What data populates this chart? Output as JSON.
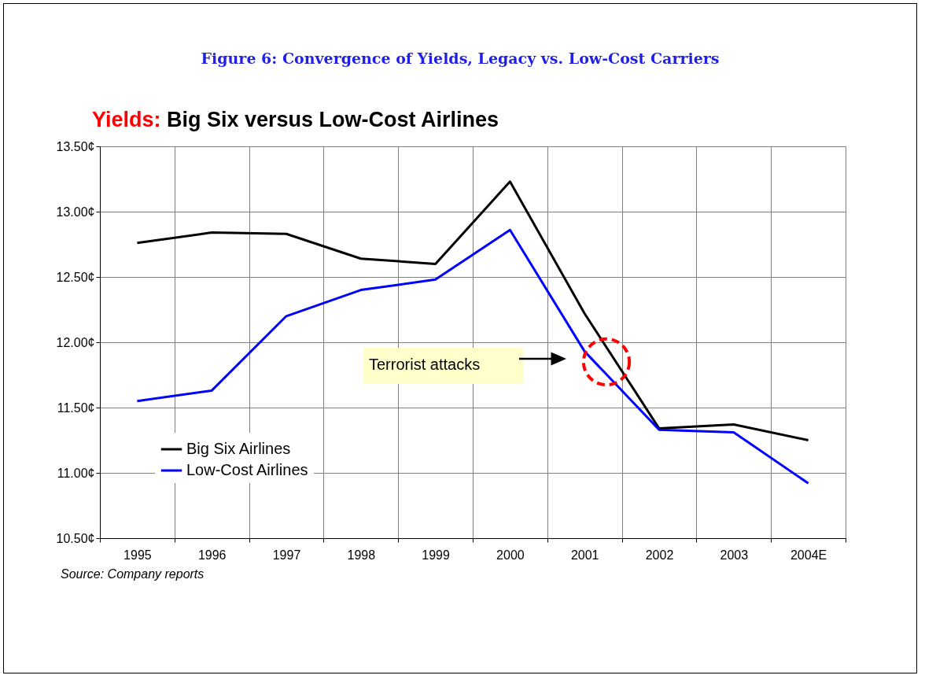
{
  "chart_data": {
    "type": "line",
    "title": "Figure 6: Convergence of Yields, Legacy vs. Low-Cost Carriers",
    "subtitle": "Yields: Big Six versus Low-Cost Airlines",
    "categories": [
      "1995",
      "1996",
      "1997",
      "1998",
      "1999",
      "2000",
      "2001",
      "2002",
      "2003",
      "2004E"
    ],
    "series": [
      {
        "name": "Big Six Airlines",
        "color": "#000000",
        "values": [
          12.76,
          12.84,
          12.83,
          12.64,
          12.6,
          13.23,
          12.22,
          11.34,
          11.37,
          11.25
        ]
      },
      {
        "name": "Low-Cost Airlines",
        "color": "#0000ff",
        "values": [
          11.55,
          11.63,
          12.2,
          12.4,
          12.48,
          12.86,
          11.93,
          11.33,
          11.31,
          10.92
        ]
      }
    ],
    "ylim": [
      10.5,
      13.5
    ],
    "yticks": [
      {
        "value": 10.5,
        "label": "10.50¢"
      },
      {
        "value": 11,
        "label": "11.00¢"
      },
      {
        "value": 11.5,
        "label": "11.50¢"
      },
      {
        "value": 12,
        "label": "12.00¢"
      },
      {
        "value": 12.5,
        "label": "12.50¢"
      },
      {
        "value": 13,
        "label": "13.00¢"
      },
      {
        "value": 13.5,
        "label": "13.50¢"
      }
    ],
    "grid": true,
    "legend": "bottom left",
    "annotations": [
      "Terrorist attacks",
      "Source: Company reports"
    ]
  }
}
